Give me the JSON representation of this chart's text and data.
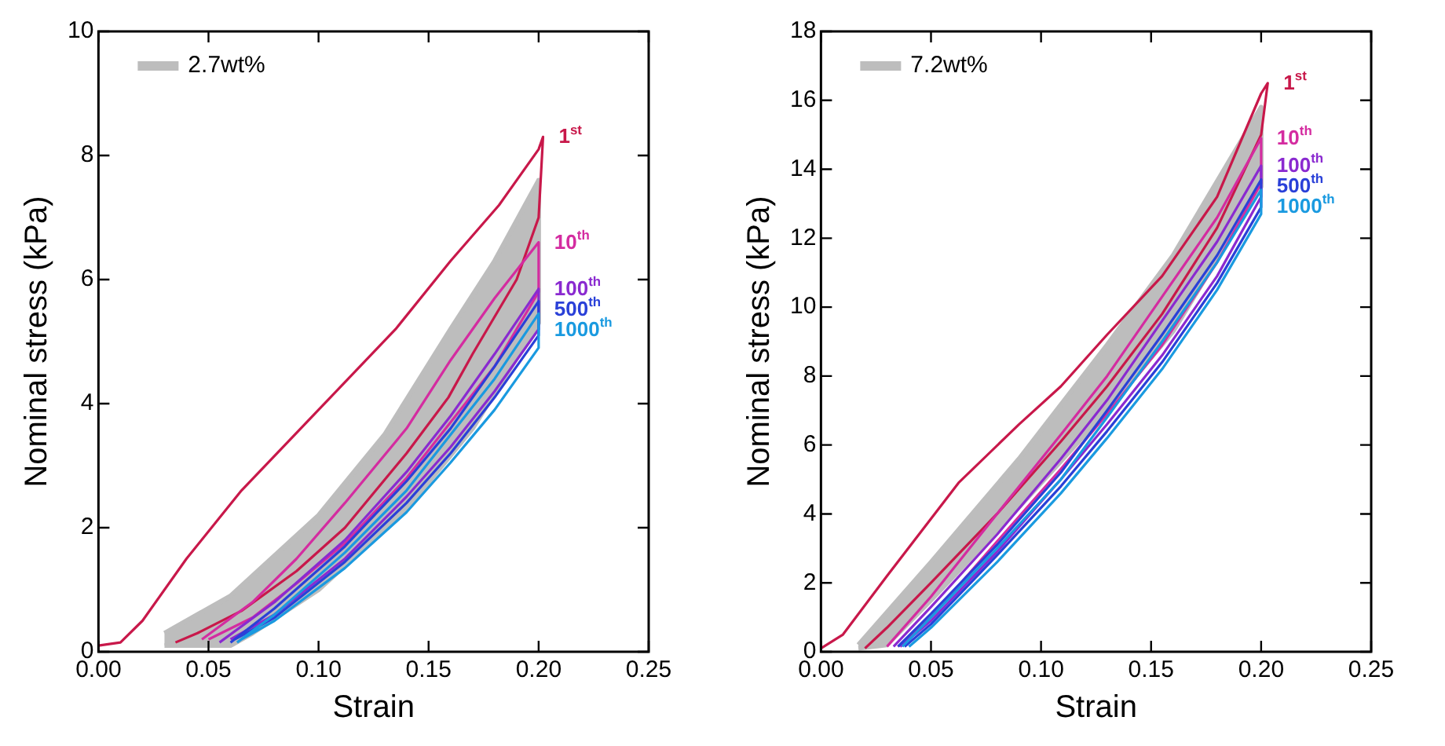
{
  "chart_data": [
    {
      "type": "line",
      "xlabel": "Strain",
      "ylabel": "Nominal stress (kPa)",
      "xlim": [
        0,
        0.25
      ],
      "ylim": [
        0,
        10
      ],
      "xticks": [
        {
          "value": 0,
          "label": "0.00"
        },
        {
          "value": 0.05,
          "label": "0.05"
        },
        {
          "value": 0.1,
          "label": "0.10"
        },
        {
          "value": 0.15,
          "label": "0.15"
        },
        {
          "value": 0.2,
          "label": "0.20"
        },
        {
          "value": 0.25,
          "label": "0.25"
        }
      ],
      "yticks": [
        0,
        2,
        4,
        6,
        8,
        10
      ],
      "legend": "top left",
      "marker": "none",
      "series": [
        {
          "type": "area",
          "name": "2.7wt%",
          "color": "#bdbdbd",
          "x": [
            0.03,
            0.06,
            0.1,
            0.13,
            0.16,
            0.18,
            0.2,
            0.2,
            0.17,
            0.14,
            0.1,
            0.07,
            0.06,
            0.03
          ],
          "values": [
            0.3,
            0.9,
            2.2,
            3.5,
            5.2,
            6.3,
            7.6,
            5.3,
            3.6,
            2.3,
            1.0,
            0.3,
            0.1,
            0.1
          ]
        },
        {
          "type": "line",
          "name": "1$^{st}$",
          "color": "#c8184a",
          "x": [
            0,
            0.01,
            0.02,
            0.04,
            0.065,
            0.1,
            0.135,
            0.16,
            0.182,
            0.2,
            0.202,
            0.2,
            0.19,
            0.17,
            0.159,
            0.14,
            0.112,
            0.09,
            0.065,
            0.045,
            0.035
          ],
          "values": [
            0.1,
            0.15,
            0.5,
            1.5,
            2.6,
            3.9,
            5.2,
            6.3,
            7.2,
            8.1,
            8.3,
            7.0,
            6.0,
            4.8,
            4.1,
            3.2,
            2.0,
            1.3,
            0.66,
            0.3,
            0.15
          ]
        },
        {
          "type": "line",
          "name": "10$^{th}$",
          "color": "#d42ca0",
          "x": [
            0.047,
            0.07,
            0.09,
            0.112,
            0.14,
            0.16,
            0.18,
            0.2,
            0.2,
            0.18,
            0.16,
            0.14,
            0.112,
            0.09,
            0.07,
            0.05
          ],
          "values": [
            0.2,
            0.8,
            1.5,
            2.4,
            3.6,
            4.7,
            5.7,
            6.6,
            5.8,
            4.6,
            3.7,
            2.8,
            1.75,
            1.1,
            0.55,
            0.2
          ]
        },
        {
          "type": "line",
          "name": "100$^{th}$",
          "color": "#8a2ad0",
          "x": [
            0.055,
            0.08,
            0.112,
            0.14,
            0.16,
            0.18,
            0.2,
            0.2,
            0.18,
            0.16,
            0.14,
            0.112,
            0.08,
            0.06
          ],
          "values": [
            0.15,
            0.8,
            1.8,
            2.9,
            3.8,
            4.8,
            5.85,
            5.2,
            4.2,
            3.3,
            2.5,
            1.5,
            0.6,
            0.2
          ]
        },
        {
          "type": "line",
          "name": "500$^{th}$",
          "color": "#2a40d8",
          "x": [
            0.06,
            0.08,
            0.112,
            0.14,
            0.16,
            0.18,
            0.2,
            0.2,
            0.18,
            0.16,
            0.14,
            0.112,
            0.08,
            0.062
          ],
          "values": [
            0.15,
            0.7,
            1.7,
            2.75,
            3.6,
            4.6,
            5.65,
            5.1,
            4.1,
            3.2,
            2.4,
            1.45,
            0.55,
            0.2
          ]
        },
        {
          "type": "line",
          "name": "1000$^{th}$",
          "color": "#1a9ae0",
          "x": [
            0.063,
            0.08,
            0.112,
            0.14,
            0.16,
            0.18,
            0.2,
            0.2,
            0.18,
            0.16,
            0.14,
            0.112,
            0.08,
            0.065
          ],
          "values": [
            0.15,
            0.6,
            1.6,
            2.6,
            3.5,
            4.4,
            5.45,
            4.9,
            3.9,
            3.05,
            2.25,
            1.35,
            0.5,
            0.2
          ]
        }
      ]
    },
    {
      "type": "line",
      "xlabel": "Strain",
      "ylabel": "Nominal stress (kPa)",
      "xlim": [
        0,
        0.25
      ],
      "ylim": [
        0,
        18
      ],
      "xticks": [
        {
          "value": 0,
          "label": "0.00"
        },
        {
          "value": 0.05,
          "label": "0.05"
        },
        {
          "value": 0.1,
          "label": "0.10"
        },
        {
          "value": 0.15,
          "label": "0.15"
        },
        {
          "value": 0.2,
          "label": "0.20"
        },
        {
          "value": 0.25,
          "label": "0.25"
        }
      ],
      "yticks": [
        0,
        2,
        4,
        6,
        8,
        10,
        12,
        14,
        16,
        18
      ],
      "legend": "top left",
      "marker": "none",
      "series": [
        {
          "type": "area",
          "name": "7.2wt%",
          "color": "#bdbdbd",
          "x": [
            0.017,
            0.05,
            0.09,
            0.13,
            0.16,
            0.2,
            0.2,
            0.16,
            0.13,
            0.09,
            0.05,
            0.03,
            0.017
          ],
          "values": [
            0.2,
            2.6,
            5.6,
            8.9,
            11.5,
            15.8,
            13.5,
            9.3,
            7.0,
            4.2,
            1.5,
            0.2,
            0.1
          ]
        },
        {
          "type": "line",
          "name": "1$^{st}$",
          "color": "#c8184a",
          "x": [
            0,
            0.01,
            0.03,
            0.0625,
            0.09,
            0.109,
            0.13,
            0.155,
            0.18,
            0.2,
            0.203,
            0.2,
            0.18,
            0.155,
            0.13,
            0.109,
            0.08,
            0.05,
            0.03,
            0.02
          ],
          "values": [
            0.1,
            0.5,
            2.2,
            4.9,
            6.6,
            7.7,
            9.2,
            10.9,
            13.2,
            16.2,
            16.5,
            15.0,
            12.3,
            9.8,
            7.7,
            6.1,
            4.0,
            2.0,
            0.7,
            0.1
          ]
        },
        {
          "type": "line",
          "name": "10$^{th}$",
          "color": "#d42ca0",
          "x": [
            0.03,
            0.05,
            0.08,
            0.109,
            0.13,
            0.155,
            0.18,
            0.2,
            0.2,
            0.18,
            0.155,
            0.13,
            0.109,
            0.08,
            0.05,
            0.035
          ],
          "values": [
            0.15,
            1.6,
            4.0,
            6.3,
            8.0,
            10.3,
            12.6,
            14.9,
            13.6,
            11.3,
            8.9,
            6.9,
            5.3,
            3.2,
            1.0,
            0.15
          ]
        },
        {
          "type": "line",
          "name": "100$^{th}$",
          "color": "#8a2ad0",
          "x": [
            0.033,
            0.05,
            0.08,
            0.109,
            0.13,
            0.155,
            0.18,
            0.2,
            0.2,
            0.18,
            0.155,
            0.13,
            0.109,
            0.08,
            0.05,
            0.036
          ],
          "values": [
            0.15,
            1.3,
            3.4,
            5.6,
            7.3,
            9.6,
            11.9,
            14.1,
            13.2,
            10.9,
            8.6,
            6.6,
            5.0,
            2.9,
            0.9,
            0.15
          ]
        },
        {
          "type": "line",
          "name": "500$^{th}$",
          "color": "#2a40d8",
          "x": [
            0.035,
            0.05,
            0.08,
            0.109,
            0.13,
            0.155,
            0.18,
            0.2,
            0.2,
            0.18,
            0.155,
            0.13,
            0.109,
            0.08,
            0.05,
            0.038
          ],
          "values": [
            0.15,
            1.1,
            3.1,
            5.2,
            7.0,
            9.2,
            11.5,
            13.7,
            12.9,
            10.7,
            8.4,
            6.4,
            4.8,
            2.8,
            0.8,
            0.15
          ]
        },
        {
          "type": "line",
          "name": "1000$^{th}$",
          "color": "#1a9ae0",
          "x": [
            0.037,
            0.05,
            0.08,
            0.109,
            0.13,
            0.155,
            0.18,
            0.2,
            0.2,
            0.18,
            0.155,
            0.13,
            0.109,
            0.08,
            0.05,
            0.04
          ],
          "values": [
            0.15,
            1.0,
            3.0,
            5.0,
            6.8,
            9.0,
            11.3,
            13.4,
            12.7,
            10.5,
            8.2,
            6.2,
            4.6,
            2.6,
            0.7,
            0.15
          ]
        }
      ]
    }
  ]
}
